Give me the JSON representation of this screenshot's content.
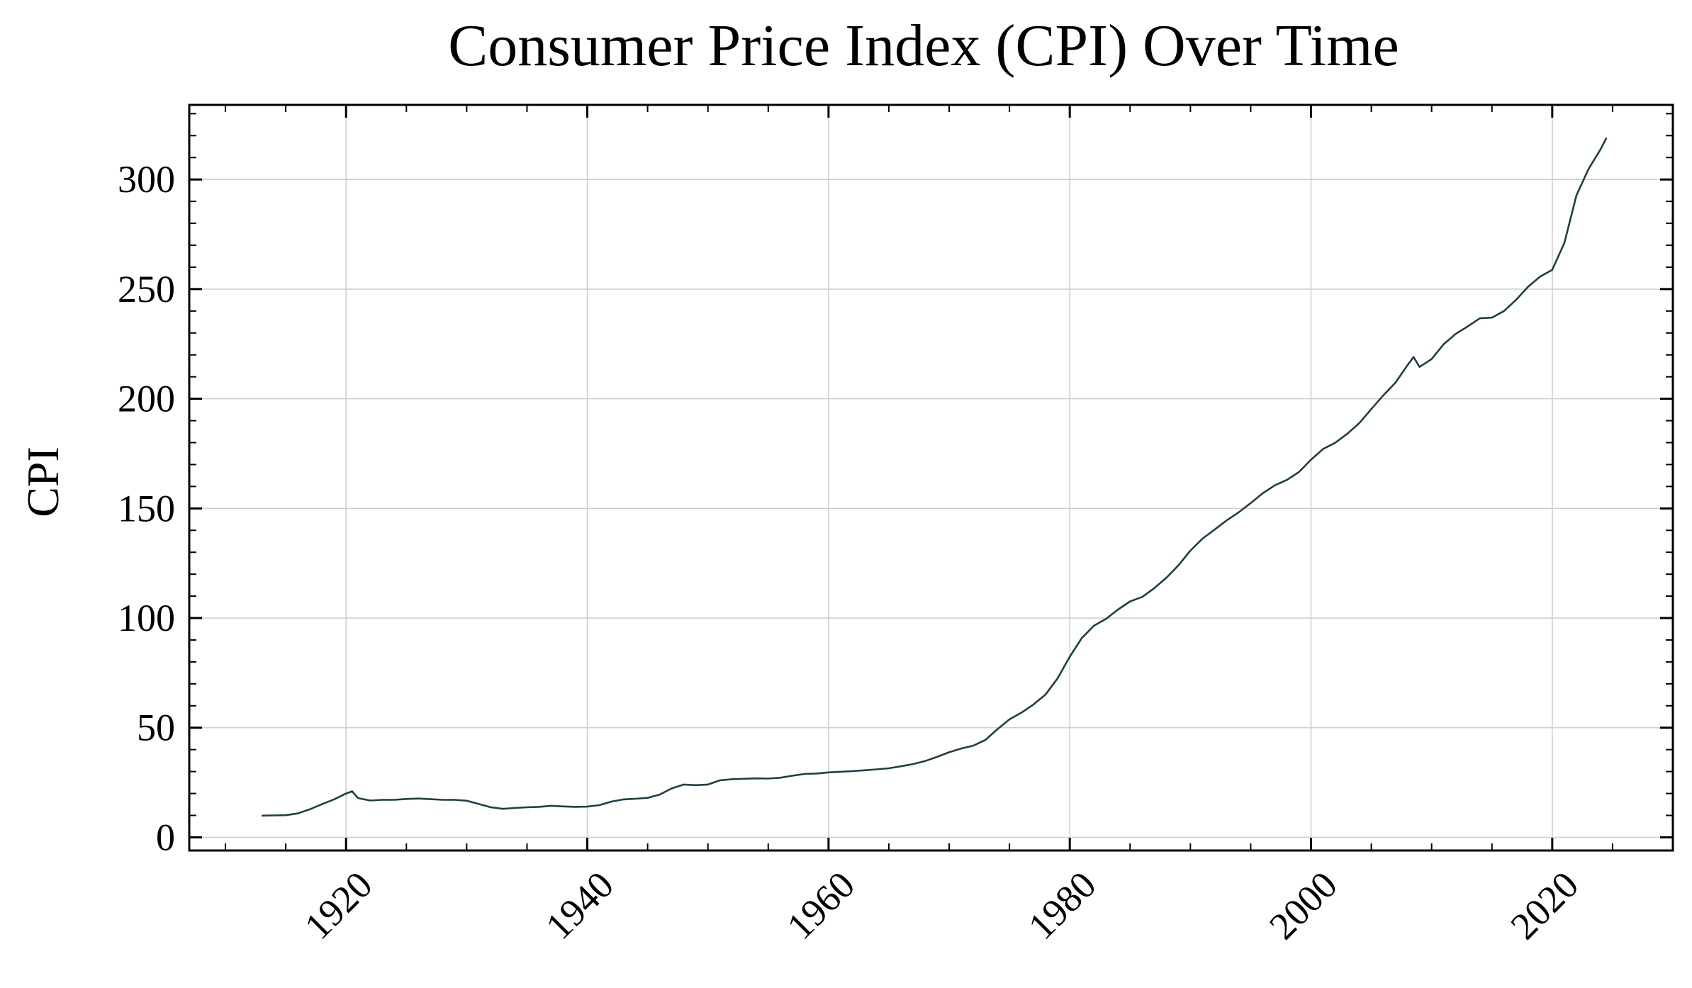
{
  "chart_data": {
    "type": "line",
    "title": "Consumer Price Index (CPI) Over Time",
    "xlabel": "",
    "ylabel": "CPI",
    "xlim": [
      1907,
      2030
    ],
    "ylim": [
      -6,
      334
    ],
    "x_ticks": [
      1920,
      1940,
      1960,
      1980,
      2000,
      2020
    ],
    "y_ticks": [
      0,
      50,
      100,
      150,
      200,
      250,
      300
    ],
    "grid": true,
    "series": [
      {
        "color": "#1f3f44",
        "x": [
          1913,
          1914,
          1915,
          1916,
          1917,
          1918,
          1919,
          1920,
          1920.5,
          1921,
          1922,
          1923,
          1924,
          1925,
          1926,
          1927,
          1928,
          1929,
          1930,
          1931,
          1932,
          1933,
          1934,
          1935,
          1936,
          1937,
          1938,
          1939,
          1940,
          1941,
          1942,
          1943,
          1944,
          1945,
          1946,
          1947,
          1948,
          1949,
          1950,
          1951,
          1952,
          1953,
          1954,
          1955,
          1956,
          1957,
          1958,
          1959,
          1960,
          1961,
          1962,
          1963,
          1964,
          1965,
          1966,
          1967,
          1968,
          1969,
          1970,
          1971,
          1972,
          1973,
          1974,
          1975,
          1976,
          1977,
          1978,
          1979,
          1980,
          1981,
          1982,
          1983,
          1984,
          1985,
          1986,
          1987,
          1988,
          1989,
          1990,
          1991,
          1992,
          1993,
          1994,
          1995,
          1996,
          1997,
          1998,
          1999,
          2000,
          2001,
          2002,
          2003,
          2004,
          2005,
          2006,
          2007,
          2008,
          2008.5,
          2009,
          2010,
          2011,
          2012,
          2013,
          2014,
          2015,
          2016,
          2017,
          2018,
          2019,
          2020,
          2021,
          2022,
          2023,
          2024,
          2024.5
        ],
        "y": [
          9.9,
          10.0,
          10.1,
          10.9,
          12.8,
          15.1,
          17.3,
          20.0,
          21.0,
          17.9,
          16.8,
          17.1,
          17.1,
          17.5,
          17.7,
          17.4,
          17.1,
          17.1,
          16.7,
          15.2,
          13.7,
          13.0,
          13.4,
          13.7,
          13.9,
          14.4,
          14.1,
          13.9,
          14.0,
          14.7,
          16.3,
          17.3,
          17.6,
          18.0,
          19.5,
          22.3,
          24.1,
          23.8,
          24.1,
          26.0,
          26.5,
          26.7,
          26.9,
          26.8,
          27.2,
          28.1,
          28.9,
          29.1,
          29.6,
          29.9,
          30.2,
          30.6,
          31.0,
          31.5,
          32.4,
          33.4,
          34.8,
          36.7,
          38.8,
          40.5,
          41.8,
          44.4,
          49.3,
          53.8,
          56.9,
          60.6,
          65.2,
          72.6,
          82.4,
          90.9,
          96.5,
          99.6,
          103.9,
          107.6,
          109.6,
          113.6,
          118.3,
          124.0,
          130.7,
          136.2,
          140.3,
          144.5,
          148.2,
          152.4,
          156.9,
          160.5,
          163.0,
          166.6,
          172.2,
          177.1,
          179.9,
          184.0,
          188.9,
          195.3,
          201.6,
          207.3,
          215.3,
          219.0,
          214.5,
          218.1,
          224.9,
          229.6,
          233.0,
          236.7,
          237.0,
          240.0,
          245.1,
          251.1,
          255.7,
          258.8,
          271.0,
          292.7,
          304.7,
          313.7,
          319.0
        ]
      }
    ]
  }
}
